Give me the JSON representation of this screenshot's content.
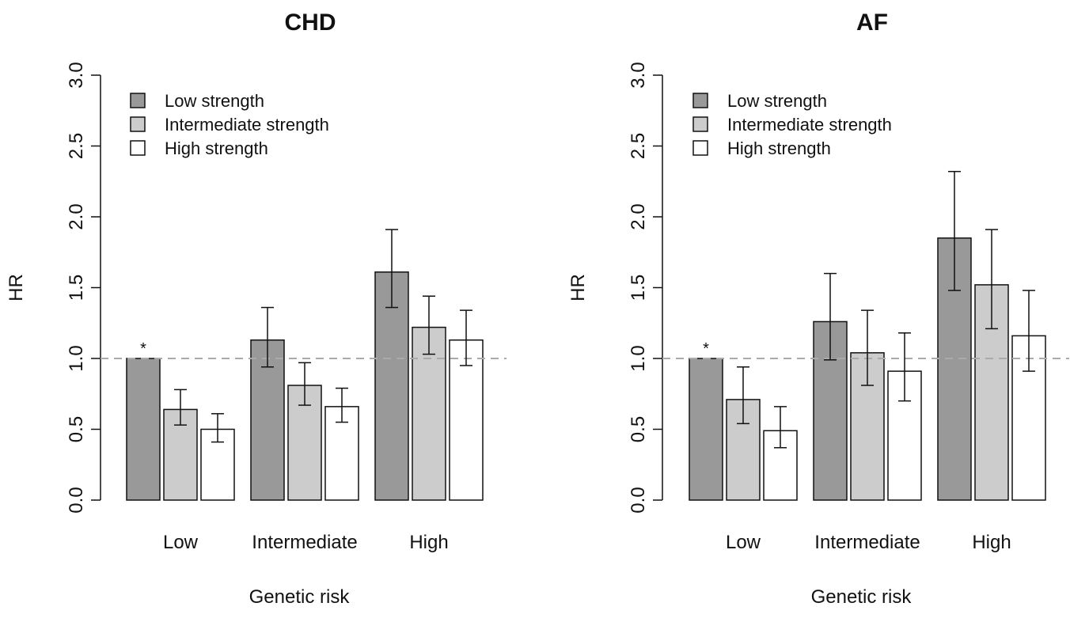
{
  "chart_data": [
    {
      "type": "bar",
      "title": "CHD",
      "xlabel": "Genetic risk",
      "ylabel": "HR",
      "ylim": [
        0,
        3
      ],
      "yticks": [
        "0.0",
        "0.5",
        "1.0",
        "1.5",
        "2.0",
        "2.5",
        "3.0"
      ],
      "categories": [
        "Low",
        "Intermediate",
        "High"
      ],
      "reference_line": 1.0,
      "legend_position": "top-left",
      "series": [
        {
          "name": "Low strength",
          "color": "#999999",
          "values": [
            1.0,
            1.13,
            1.61
          ],
          "lower": [
            null,
            0.94,
            1.36
          ],
          "upper": [
            null,
            1.36,
            1.91
          ]
        },
        {
          "name": "Intermediate strength",
          "color": "#cccccc",
          "values": [
            0.64,
            0.81,
            1.22
          ],
          "lower": [
            0.53,
            0.67,
            1.03
          ],
          "upper": [
            0.78,
            0.97,
            1.44
          ]
        },
        {
          "name": "High strength",
          "color": "#ffffff",
          "values": [
            0.5,
            0.66,
            1.13
          ],
          "lower": [
            0.41,
            0.55,
            0.95
          ],
          "upper": [
            0.61,
            0.79,
            1.34
          ]
        }
      ],
      "annotations": [
        {
          "text": "*",
          "series": 0,
          "category": 0
        }
      ]
    },
    {
      "type": "bar",
      "title": "AF",
      "xlabel": "Genetic risk",
      "ylabel": "HR",
      "ylim": [
        0,
        3
      ],
      "yticks": [
        "0.0",
        "0.5",
        "1.0",
        "1.5",
        "2.0",
        "2.5",
        "3.0"
      ],
      "categories": [
        "Low",
        "Intermediate",
        "High"
      ],
      "reference_line": 1.0,
      "legend_position": "top-left",
      "series": [
        {
          "name": "Low strength",
          "color": "#999999",
          "values": [
            1.0,
            1.26,
            1.85
          ],
          "lower": [
            null,
            0.99,
            1.48
          ],
          "upper": [
            null,
            1.6,
            2.32
          ]
        },
        {
          "name": "Intermediate strength",
          "color": "#cccccc",
          "values": [
            0.71,
            1.04,
            1.52
          ],
          "lower": [
            0.54,
            0.81,
            1.21
          ],
          "upper": [
            0.94,
            1.34,
            1.91
          ]
        },
        {
          "name": "High strength",
          "color": "#ffffff",
          "values": [
            0.49,
            0.91,
            1.16
          ],
          "lower": [
            0.37,
            0.7,
            0.91
          ],
          "upper": [
            0.66,
            1.18,
            1.48
          ]
        }
      ],
      "annotations": [
        {
          "text": "*",
          "series": 0,
          "category": 0
        }
      ]
    }
  ]
}
